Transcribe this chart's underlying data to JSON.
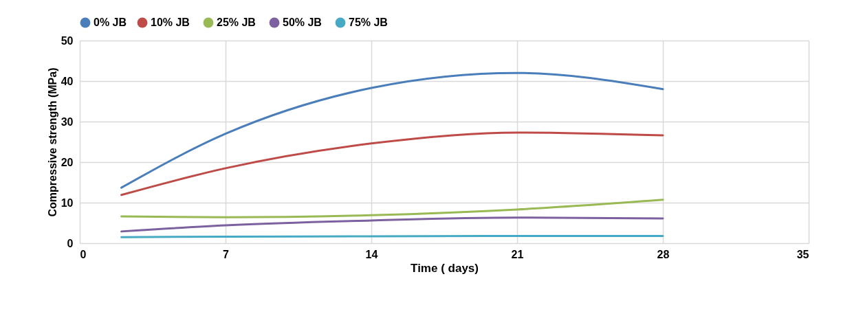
{
  "chart_data": {
    "type": "line",
    "xlabel": "Time ( days)",
    "ylabel": "Compressive strength  (MPa)",
    "xlim": [
      0,
      35
    ],
    "xticks": [
      0,
      7,
      14,
      21,
      28,
      35
    ],
    "ylim": [
      0,
      50
    ],
    "yticks": [
      0,
      10,
      20,
      30,
      40,
      50
    ],
    "grid": true,
    "legend": "top",
    "series": [
      {
        "name": "0% JB",
        "color": "#4a7ebb",
        "x": [
          2,
          7,
          14,
          21,
          28
        ],
        "values": [
          13.7,
          27,
          38.3,
          42,
          38
        ]
      },
      {
        "name": "10%  JB",
        "color": "#be4b48",
        "x": [
          2,
          7,
          14,
          21,
          28
        ],
        "values": [
          11.9,
          18.5,
          24.6,
          27.3,
          26.6
        ]
      },
      {
        "name": "25%  JB",
        "color": "#98b954",
        "x": [
          2,
          7,
          14,
          21,
          28
        ],
        "values": [
          6.6,
          6.4,
          6.9,
          8.3,
          10.7
        ]
      },
      {
        "name": "50%  JB",
        "color": "#7d60a0",
        "x": [
          2,
          7,
          14,
          21,
          28
        ],
        "values": [
          2.9,
          4.4,
          5.6,
          6.3,
          6.1
        ]
      },
      {
        "name": "75%  JB",
        "color": "#46aac5",
        "x": [
          2,
          7,
          14,
          21,
          28
        ],
        "values": [
          1.5,
          1.6,
          1.7,
          1.8,
          1.8
        ]
      }
    ]
  }
}
